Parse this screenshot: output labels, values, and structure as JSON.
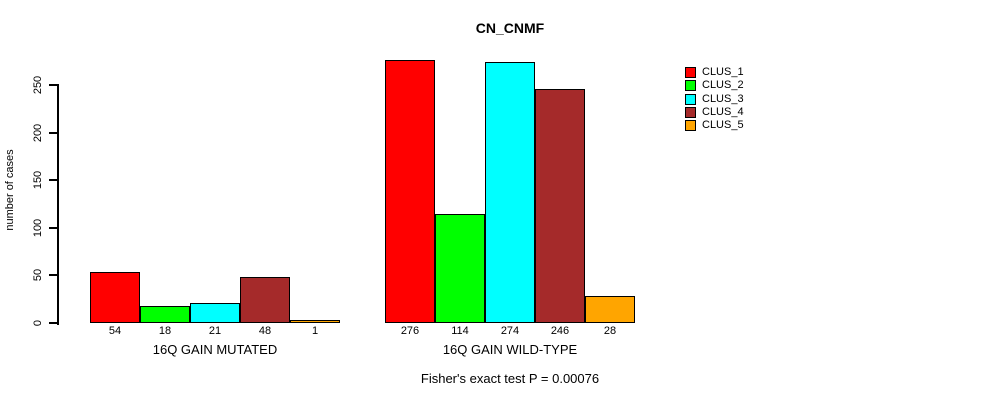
{
  "chart_data": {
    "type": "bar",
    "title": "CN_CNMF",
    "ylabel": "number of cases",
    "ylim": [
      0,
      250
    ],
    "yticks": [
      0,
      50,
      100,
      150,
      200,
      250
    ],
    "grid": false,
    "legend_position": "right",
    "series_names": [
      "CLUS_1",
      "CLUS_2",
      "CLUS_3",
      "CLUS_4",
      "CLUS_5"
    ],
    "series_colors": [
      "#FF0000",
      "#00FF00",
      "#00FFFF",
      "#A52A2A",
      "#FFA500"
    ],
    "groups": [
      {
        "label": "16Q GAIN MUTATED",
        "values": [
          54,
          18,
          21,
          48,
          1
        ]
      },
      {
        "label": "16Q GAIN WILD-TYPE",
        "values": [
          276,
          114,
          274,
          246,
          28
        ]
      }
    ],
    "annotation": "Fisher's exact test P = 0.00076",
    "colors": {
      "background": "#FFFFFF",
      "axis": "#000000",
      "bar_border": "#000000",
      "text": "#000000"
    }
  }
}
